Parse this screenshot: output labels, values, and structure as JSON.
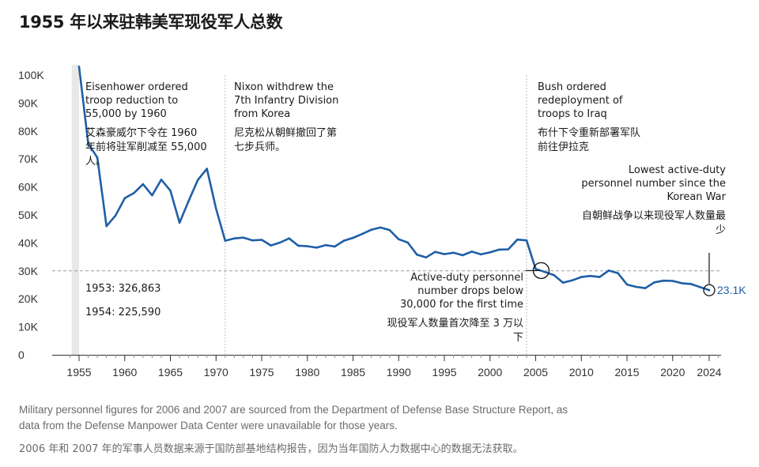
{
  "title": "1955 年以来驻韩美军现役军人总数",
  "chart_data": {
    "type": "line",
    "title": "1955 年以来驻韩美军现役军人总数",
    "xlabel": "",
    "ylabel": "",
    "ylim": [
      0,
      100000
    ],
    "xlim": [
      1954.2,
      2025
    ],
    "x_ticks": [
      1955,
      1960,
      1965,
      1970,
      1975,
      1980,
      1985,
      1990,
      1995,
      2000,
      2005,
      2010,
      2015,
      2020,
      2024
    ],
    "y_ticks": [
      {
        "value": 0,
        "label": "0"
      },
      {
        "value": 10000,
        "label": "10K"
      },
      {
        "value": 20000,
        "label": "20K"
      },
      {
        "value": 30000,
        "label": "30K"
      },
      {
        "value": 40000,
        "label": "40K"
      },
      {
        "value": 50000,
        "label": "50K"
      },
      {
        "value": 60000,
        "label": "60K"
      },
      {
        "value": 70000,
        "label": "70K"
      },
      {
        "value": 80000,
        "label": "80K"
      },
      {
        "value": 90000,
        "label": "90K"
      },
      {
        "value": 100000,
        "label": "100K"
      }
    ],
    "reference_line": 30000,
    "grid": false,
    "line_color": "#1f5fa6",
    "series": [
      {
        "x": [
          1955,
          1956,
          1957,
          1958,
          1959,
          1960,
          1961,
          1962,
          1963,
          1964,
          1965,
          1966,
          1967,
          1968,
          1969,
          1970,
          1971,
          1972,
          1973,
          1974,
          1975,
          1976,
          1977,
          1978,
          1979,
          1980,
          1981,
          1982,
          1983,
          1984,
          1985,
          1986,
          1987,
          1988,
          1989,
          1990,
          1991,
          1992,
          1993,
          1994,
          1995,
          1996,
          1997,
          1998,
          1999,
          2000,
          2001,
          2002,
          2003,
          2004,
          2005,
          2006,
          2007,
          2008,
          2009,
          2010,
          2011,
          2012,
          2013,
          2014,
          2015,
          2016,
          2017,
          2018,
          2019,
          2020,
          2021,
          2022,
          2023,
          2024
        ],
        "values": [
          103000,
          75500,
          70500,
          46000,
          49800,
          56000,
          57800,
          61000,
          57000,
          62600,
          58700,
          47200,
          55000,
          62500,
          66500,
          52200,
          40800,
          41600,
          41900,
          40900,
          41100,
          39100,
          40100,
          41600,
          39000,
          38800,
          38300,
          39200,
          38700,
          40800,
          41800,
          43200,
          44700,
          45500,
          44600,
          41300,
          40100,
          35800,
          34800,
          36800,
          36000,
          36500,
          35600,
          36900,
          35900,
          36600,
          37600,
          37700,
          41200,
          40900,
          30700,
          29600,
          28500,
          25800,
          26600,
          27800,
          28200,
          27800,
          30100,
          29200,
          25100,
          24300,
          23800,
          25900,
          26500,
          26400,
          25600,
          25300,
          24200,
          23100
        ]
      }
    ],
    "era_lines": [
      1971,
      2004
    ],
    "shaded_region": [
      1954.2,
      1955
    ],
    "end_label": "23.1K",
    "notes": {
      "pre": [
        "1953: 326,863",
        "1954: 225,590"
      ],
      "eisenhower": {
        "en": [
          "Eisenhower ordered",
          "troop reduction to",
          "55,000 by 1960"
        ],
        "zh": [
          "艾森豪威尔下令在 1960",
          "年前将驻军削减至 55,000",
          "人。"
        ]
      },
      "nixon": {
        "en": [
          "Nixon withdrew the",
          "7th Infantry Division",
          "from Korea"
        ],
        "zh": [
          "尼克松从朝鲜撤回了第",
          "七步兵师。"
        ]
      },
      "bush": {
        "en": [
          "Bush ordered",
          "redeployment of",
          "troops to Iraq"
        ],
        "zh": [
          "布什下令重新部署军队",
          "前往伊拉克"
        ]
      },
      "below30k": {
        "en": [
          "Active-duty personnel",
          "number drops below",
          "30,000 for the first time"
        ],
        "zh": [
          "现役军人数量首次降至 3 万以",
          "下"
        ]
      },
      "lowest": {
        "en": [
          "Lowest active-duty",
          "personnel number since the",
          "Korean War"
        ],
        "zh": [
          "自朝鲜战争以来现役军人数量最",
          "少"
        ]
      }
    }
  },
  "footnote": {
    "en": [
      "Military personnel figures for 2006 and 2007 are sourced from the Department of Defense Base Structure Report, as",
      "data from the Defense Manpower Data Center were unavailable for those years."
    ],
    "zh": "2006 年和 2007 年的军事人员数据来源于国防部基地结构报告，因为当年国防人力数据中心的数据无法获取。"
  }
}
